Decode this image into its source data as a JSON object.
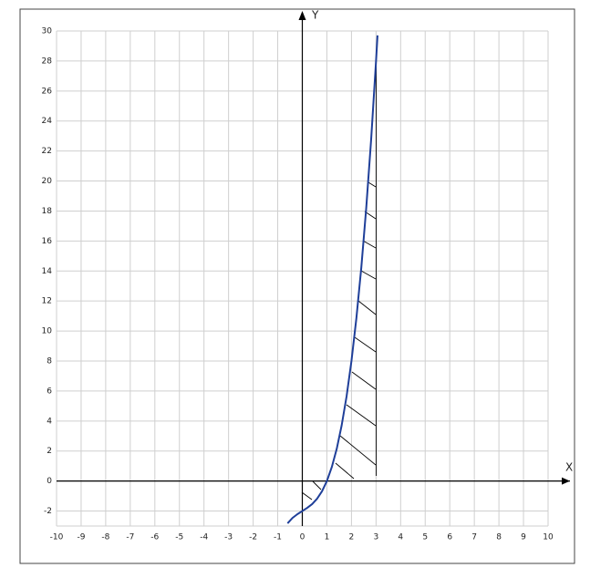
{
  "chart_data": {
    "type": "line",
    "x_label": "X",
    "y_label": "Y",
    "x": [
      -0.6,
      -0.4,
      -0.2,
      0,
      0.2,
      0.4,
      0.6,
      0.8,
      1,
      1.2,
      1.4,
      1.6,
      1.8,
      2,
      2.2,
      2.4,
      2.6,
      2.8,
      3,
      3.06
    ],
    "series": [
      {
        "color": "#1f3f99",
        "values": [
          -2.82,
          -2.46,
          -2.21,
          -2,
          -1.79,
          -1.54,
          -1.18,
          -0.69,
          0,
          0.93,
          2.14,
          3.7,
          5.63,
          8,
          10.85,
          14.22,
          18.18,
          22.75,
          28,
          29.71
        ]
      }
    ],
    "xlim": [
      -10,
      10
    ],
    "ylim": [
      -3,
      30
    ],
    "xticks": [
      -10,
      -9,
      -8,
      -7,
      -6,
      -5,
      -4,
      -3,
      -2,
      -1,
      0,
      1,
      2,
      3,
      4,
      5,
      6,
      7,
      8,
      9,
      10
    ],
    "yticks": [
      -2,
      0,
      2,
      4,
      6,
      8,
      10,
      12,
      14,
      16,
      18,
      20,
      22,
      24,
      26,
      28,
      30
    ],
    "grid": true
  }
}
